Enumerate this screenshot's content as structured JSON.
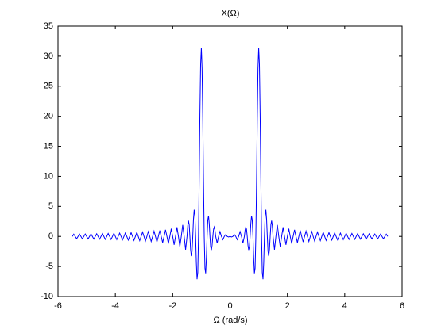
{
  "chart_data": {
    "type": "line",
    "title": "X(Ω)",
    "x_label": "Ω (rad/s)",
    "color": "#0000ff",
    "xlim": [
      -6,
      6
    ],
    "ylim": [
      -10,
      35
    ],
    "xticks": [
      -6,
      -4,
      -2,
      0,
      2,
      4,
      6
    ],
    "yticks": [
      -10,
      -5,
      0,
      5,
      10,
      15,
      20,
      25,
      30,
      35
    ],
    "grid": false,
    "x": [
      -5.5,
      -5.45,
      -5.4,
      -5.35,
      -5.3,
      -5.25,
      -5.2,
      -5.15,
      -5.1,
      -5.05,
      -5,
      -4.95,
      -4.9,
      -4.85,
      -4.8,
      -4.75,
      -4.7,
      -4.65,
      -4.6,
      -4.55,
      -4.5,
      -4.45,
      -4.4,
      -4.35,
      -4.3,
      -4.25,
      -4.2,
      -4.15,
      -4.1,
      -4.05,
      -4,
      -3.95,
      -3.9,
      -3.85,
      -3.8,
      -3.75,
      -3.7,
      -3.65,
      -3.6,
      -3.55,
      -3.5,
      -3.45,
      -3.4,
      -3.35,
      -3.3,
      -3.25,
      -3.2,
      -3.15,
      -3.1,
      -3.05,
      -3,
      -2.95,
      -2.9,
      -2.85,
      -2.8,
      -2.75,
      -2.7,
      -2.65,
      -2.6,
      -2.55,
      -2.5,
      -2.45,
      -2.4,
      -2.35,
      -2.3,
      -2.25,
      -2.2,
      -2.15,
      -2.1,
      -2.05,
      -2,
      -1.95,
      -1.9,
      -1.85,
      -1.8,
      -1.75,
      -1.7,
      -1.65,
      -1.6,
      -1.55,
      -1.5,
      -1.475,
      -1.45,
      -1.425,
      -1.4,
      -1.375,
      -1.35,
      -1.325,
      -1.3,
      -1.275,
      -1.25,
      -1.225,
      -1.2,
      -1.175,
      -1.15,
      -1.125,
      -1.1,
      -1.075,
      -1.05,
      -1.025,
      -1,
      -0.975,
      -0.95,
      -0.925,
      -0.9,
      -0.875,
      -0.85,
      -0.825,
      -0.8,
      -0.775,
      -0.75,
      -0.725,
      -0.7,
      -0.675,
      -0.65,
      -0.625,
      -0.6,
      -0.575,
      -0.55,
      -0.525,
      -0.5,
      -0.45,
      -0.4,
      -0.35,
      -0.3,
      -0.25,
      -0.2,
      -0.15,
      -0.1,
      -0.05,
      0,
      0.05,
      0.1,
      0.15,
      0.2,
      0.25,
      0.3,
      0.35,
      0.4,
      0.45,
      0.5,
      0.525,
      0.55,
      0.575,
      0.6,
      0.625,
      0.65,
      0.675,
      0.7,
      0.725,
      0.75,
      0.775,
      0.8,
      0.825,
      0.85,
      0.875,
      0.9,
      0.925,
      0.95,
      0.975,
      1,
      1.025,
      1.05,
      1.075,
      1.1,
      1.125,
      1.15,
      1.175,
      1.2,
      1.225,
      1.25,
      1.275,
      1.3,
      1.325,
      1.35,
      1.375,
      1.4,
      1.425,
      1.45,
      1.475,
      1.5,
      1.55,
      1.6,
      1.65,
      1.7,
      1.75,
      1.8,
      1.85,
      1.9,
      1.95,
      2,
      2.05,
      2.1,
      2.15,
      2.2,
      2.25,
      2.3,
      2.35,
      2.4,
      2.45,
      2.5,
      2.55,
      2.6,
      2.65,
      2.7,
      2.75,
      2.8,
      2.85,
      2.9,
      2.95,
      3,
      3.05,
      3.1,
      3.15,
      3.2,
      3.25,
      3.3,
      3.35,
      3.4,
      3.45,
      3.5,
      3.55,
      3.6,
      3.65,
      3.7,
      3.75,
      3.8,
      3.85,
      3.9,
      3.95,
      4,
      4.05,
      4.1,
      4.15,
      4.2,
      4.25,
      4.3,
      4.35,
      4.4,
      4.45,
      4.5,
      4.55,
      4.6,
      4.65,
      4.7,
      4.75,
      4.8,
      4.85,
      4.9,
      4.95,
      5,
      5.05,
      5.1,
      5.15,
      5.2,
      5.25,
      5.3,
      5.35,
      5.4,
      5.45,
      5.5
    ],
    "values": [
      0,
      0.38,
      0,
      -0.39,
      0,
      0.4,
      0,
      -0.4,
      0,
      0.41,
      0,
      -0.42,
      0,
      0.43,
      0,
      -0.44,
      0,
      0.45,
      0,
      -0.46,
      0,
      0.47,
      0,
      -0.49,
      0,
      0.5,
      0,
      -0.51,
      0,
      0.53,
      0,
      -0.54,
      0,
      0.56,
      0,
      -0.57,
      0,
      0.59,
      0,
      -0.61,
      0,
      0.63,
      0,
      -0.66,
      0,
      0.68,
      0,
      -0.71,
      0,
      0.73,
      0,
      -0.77,
      0,
      0.8,
      0,
      -0.84,
      0,
      0.88,
      0,
      -0.93,
      0,
      0.98,
      0,
      -1.04,
      0,
      1.11,
      0,
      -1.19,
      0,
      1.28,
      0,
      -1.39,
      0,
      1.53,
      0,
      -1.7,
      0,
      1.92,
      0,
      -2.21,
      0,
      1.77,
      2.63,
      1.96,
      0,
      -2.18,
      -3.28,
      -2.48,
      0,
      2.88,
      4.44,
      3.46,
      0,
      -4.37,
      -7.13,
      -5.99,
      0,
      9.77,
      20.49,
      28.63,
      31.42,
      27.93,
      19.49,
      9.06,
      0,
      -5.28,
      -6.13,
      -3.65,
      0,
      2.74,
      3.43,
      2.16,
      0,
      -1.75,
      -2.25,
      -1.45,
      0,
      1.21,
      1.58,
      1.02,
      0,
      -1.13,
      0,
      0.8,
      0,
      -0.53,
      0,
      0.31,
      0,
      -0.1,
      0,
      -0.1,
      0,
      0.31,
      0,
      -0.53,
      0,
      0.8,
      0,
      -1.13,
      0,
      1.02,
      1.58,
      1.21,
      0,
      -1.45,
      -2.25,
      -1.75,
      0,
      2.16,
      3.43,
      2.74,
      0,
      -3.65,
      -6.13,
      -5.28,
      0,
      9.06,
      19.49,
      27.93,
      31.42,
      28.63,
      20.49,
      9.77,
      0,
      -5.99,
      -7.13,
      -4.37,
      0,
      3.46,
      4.44,
      2.88,
      0,
      -2.48,
      -3.28,
      -2.18,
      0,
      1.96,
      2.63,
      1.77,
      0,
      -2.21,
      0,
      1.92,
      0,
      -1.7,
      0,
      1.53,
      0,
      -1.39,
      0,
      1.28,
      0,
      -1.19,
      0,
      1.11,
      0,
      -1.04,
      0,
      0.98,
      0,
      -0.93,
      0,
      0.88,
      0,
      -0.84,
      0,
      0.8,
      0,
      -0.77,
      0,
      0.73,
      0,
      -0.71,
      0,
      0.68,
      0,
      -0.66,
      0,
      0.63,
      0,
      -0.61,
      0,
      0.59,
      0,
      -0.57,
      0,
      0.56,
      0,
      -0.54,
      0,
      0.53,
      0,
      -0.51,
      0,
      0.5,
      0,
      -0.49,
      0,
      0.47,
      0,
      -0.46,
      0,
      0.45,
      0,
      -0.44,
      0,
      0.43,
      0,
      -0.42,
      0,
      0.41,
      0,
      -0.4,
      0,
      0.4,
      0,
      -0.39,
      0,
      0.38,
      0
    ]
  }
}
